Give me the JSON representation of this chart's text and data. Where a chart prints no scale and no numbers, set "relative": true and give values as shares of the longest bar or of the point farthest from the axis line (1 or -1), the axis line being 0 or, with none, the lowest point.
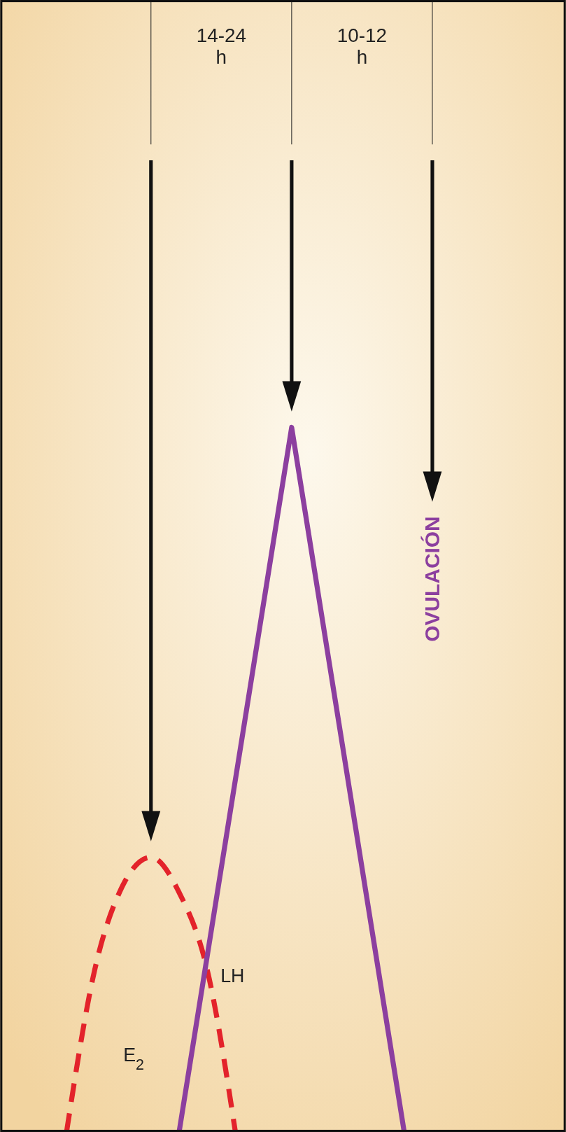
{
  "chart_data": {
    "type": "line",
    "relative": true,
    "categories": [
      null,
      null,
      null,
      null,
      null,
      null,
      null,
      null,
      null,
      null,
      null,
      null,
      null,
      null,
      null,
      null,
      null,
      null,
      null,
      null
    ],
    "series": [
      {
        "name": "E$_{2}$",
        "color": "#e3232b",
        "line_style": "dashed",
        "values": [
          null,
          null,
          0,
          0.23,
          0.35,
          0.39,
          0.34,
          0.23,
          0,
          null,
          null,
          null,
          null,
          null,
          null,
          null,
          null,
          null,
          null,
          null
        ]
      },
      {
        "name": "LH",
        "color": "#8c3f9f",
        "line_style": "solid",
        "values": [
          null,
          null,
          null,
          null,
          null,
          null,
          0,
          null,
          null,
          null,
          1,
          null,
          null,
          null,
          0,
          null,
          null,
          null,
          null,
          null
        ]
      }
    ],
    "annotations": [
      "14-24\nh",
      "10-12\nh",
      "OVULACIÓN"
    ],
    "grid": false,
    "marker": "none"
  }
}
